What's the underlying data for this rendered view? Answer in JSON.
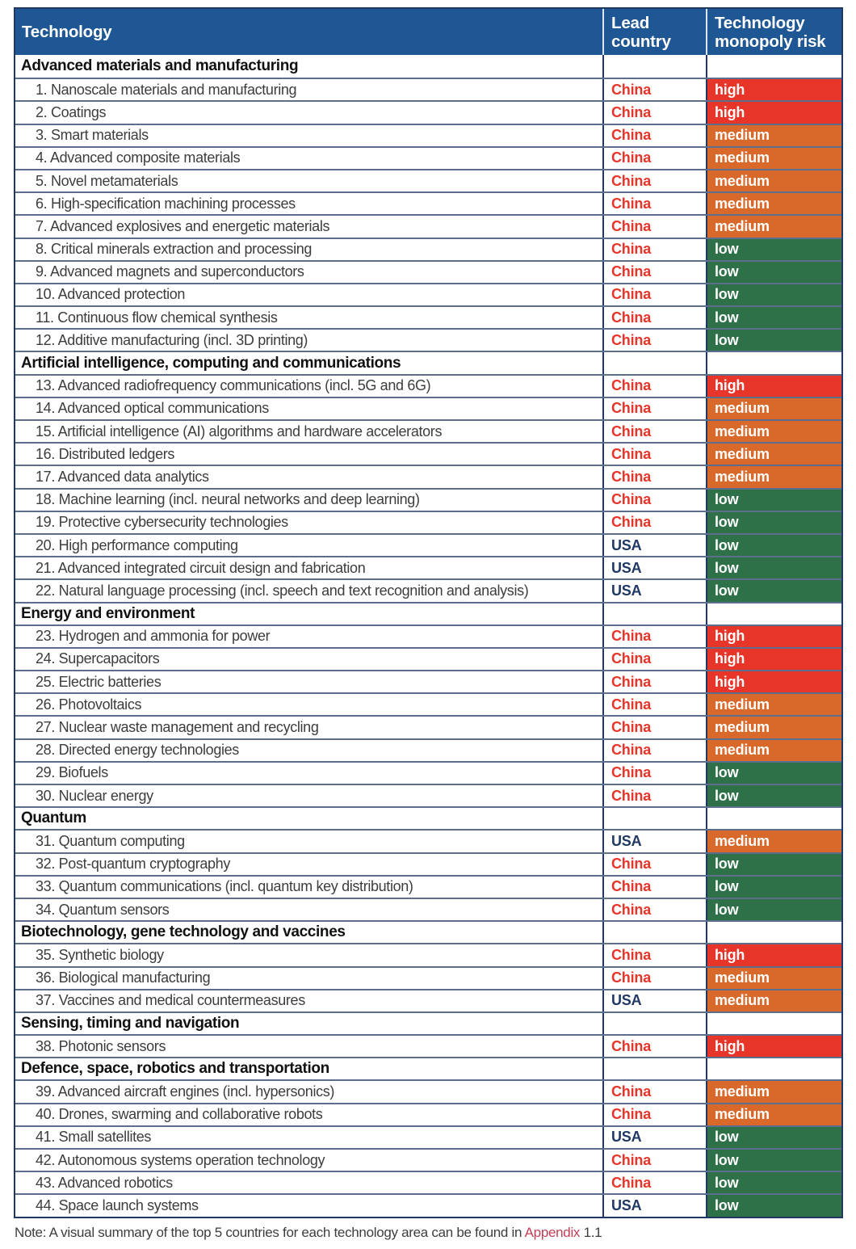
{
  "header": {
    "col_technology": "Technology",
    "col_lead_country": "Lead country",
    "col_risk": "Technology monopoly risk"
  },
  "colors": {
    "header_bg": "#1f5795",
    "border_navy": "#1f3864",
    "border_slate": "#5d6e8c",
    "link": "#c24056"
  },
  "risk_colors": {
    "high": "#e8352a",
    "medium": "#d8692a",
    "low": "#2e7149"
  },
  "country_colors": {
    "China": "#e8352a",
    "USA": "#1f3864"
  },
  "sections": [
    {
      "title": "Advanced materials and manufacturing",
      "rows": [
        {
          "label": "1. Nanoscale materials and manufacturing",
          "country": "China",
          "risk": "high"
        },
        {
          "label": "2. Coatings",
          "country": "China",
          "risk": "high"
        },
        {
          "label": "3. Smart materials",
          "country": "China",
          "risk": "medium"
        },
        {
          "label": "4. Advanced composite materials",
          "country": "China",
          "risk": "medium"
        },
        {
          "label": "5. Novel metamaterials",
          "country": "China",
          "risk": "medium"
        },
        {
          "label": "6. High-specification machining processes",
          "country": "China",
          "risk": "medium"
        },
        {
          "label": "7. Advanced explosives and energetic materials",
          "country": "China",
          "risk": "medium"
        },
        {
          "label": "8. Critical minerals extraction and processing",
          "country": "China",
          "risk": "low"
        },
        {
          "label": "9. Advanced magnets and superconductors",
          "country": "China",
          "risk": "low"
        },
        {
          "label": "10. Advanced protection",
          "country": "China",
          "risk": "low"
        },
        {
          "label": "11. Continuous flow chemical synthesis",
          "country": "China",
          "risk": "low"
        },
        {
          "label": "12. Additive manufacturing (incl. 3D printing)",
          "country": "China",
          "risk": "low"
        }
      ]
    },
    {
      "title": "Artificial intelligence, computing and communications",
      "rows": [
        {
          "label": "13. Advanced radiofrequency communications (incl. 5G and 6G)",
          "country": "China",
          "risk": "high"
        },
        {
          "label": "14. Advanced optical communications",
          "country": "China",
          "risk": "medium"
        },
        {
          "label": "15. Artificial intelligence (AI) algorithms and hardware accelerators",
          "country": "China",
          "risk": "medium"
        },
        {
          "label": "16. Distributed ledgers",
          "country": "China",
          "risk": "medium"
        },
        {
          "label": "17. Advanced data analytics",
          "country": "China",
          "risk": "medium"
        },
        {
          "label": "18. Machine learning (incl. neural networks and deep learning)",
          "country": "China",
          "risk": "low"
        },
        {
          "label": "19. Protective cybersecurity technologies",
          "country": "China",
          "risk": "low"
        },
        {
          "label": "20. High performance computing",
          "country": "USA",
          "risk": "low"
        },
        {
          "label": "21. Advanced integrated circuit design and fabrication",
          "country": "USA",
          "risk": "low"
        },
        {
          "label": "22. Natural language processing (incl. speech and text recognition and analysis)",
          "country": "USA",
          "risk": "low"
        }
      ]
    },
    {
      "title": "Energy and environment",
      "rows": [
        {
          "label": "23. Hydrogen and ammonia for power",
          "country": "China",
          "risk": "high"
        },
        {
          "label": "24. Supercapacitors",
          "country": "China",
          "risk": "high"
        },
        {
          "label": "25. Electric batteries",
          "country": "China",
          "risk": "high"
        },
        {
          "label": "26. Photovoltaics",
          "country": "China",
          "risk": "medium"
        },
        {
          "label": "27. Nuclear waste management and recycling",
          "country": "China",
          "risk": "medium"
        },
        {
          "label": "28. Directed energy technologies",
          "country": "China",
          "risk": "medium"
        },
        {
          "label": "29. Biofuels",
          "country": "China",
          "risk": "low"
        },
        {
          "label": "30. Nuclear energy",
          "country": "China",
          "risk": "low"
        }
      ]
    },
    {
      "title": "Quantum",
      "rows": [
        {
          "label": "31. Quantum computing",
          "country": "USA",
          "risk": "medium"
        },
        {
          "label": "32. Post-quantum cryptography",
          "country": "China",
          "risk": "low"
        },
        {
          "label": "33. Quantum communications (incl. quantum key distribution)",
          "country": "China",
          "risk": "low"
        },
        {
          "label": "34. Quantum sensors",
          "country": "China",
          "risk": "low"
        }
      ]
    },
    {
      "title": "Biotechnology, gene technology and vaccines",
      "rows": [
        {
          "label": "35. Synthetic biology",
          "country": "China",
          "risk": "high"
        },
        {
          "label": "36. Biological manufacturing",
          "country": "China",
          "risk": "medium"
        },
        {
          "label": "37. Vaccines and medical countermeasures",
          "country": "USA",
          "risk": "medium"
        }
      ]
    },
    {
      "title": "Sensing, timing and navigation",
      "rows": [
        {
          "label": "38. Photonic sensors",
          "country": "China",
          "risk": "high"
        }
      ]
    },
    {
      "title": "Defence, space, robotics and transportation",
      "rows": [
        {
          "label": "39. Advanced aircraft engines (incl. hypersonics)",
          "country": "China",
          "risk": "medium"
        },
        {
          "label": "40. Drones, swarming and collaborative robots",
          "country": "China",
          "risk": "medium"
        },
        {
          "label": "41. Small satellites",
          "country": "USA",
          "risk": "low"
        },
        {
          "label": "42. Autonomous systems operation technology",
          "country": "China",
          "risk": "low"
        },
        {
          "label": "43. Advanced robotics",
          "country": "China",
          "risk": "low"
        },
        {
          "label": "44. Space launch systems",
          "country": "USA",
          "risk": "low"
        }
      ]
    }
  ],
  "note": {
    "prefix": "Note: A visual summary of the top 5 countries for each technology area can be found in ",
    "link_text": "Appendix",
    "suffix": " 1.1"
  }
}
